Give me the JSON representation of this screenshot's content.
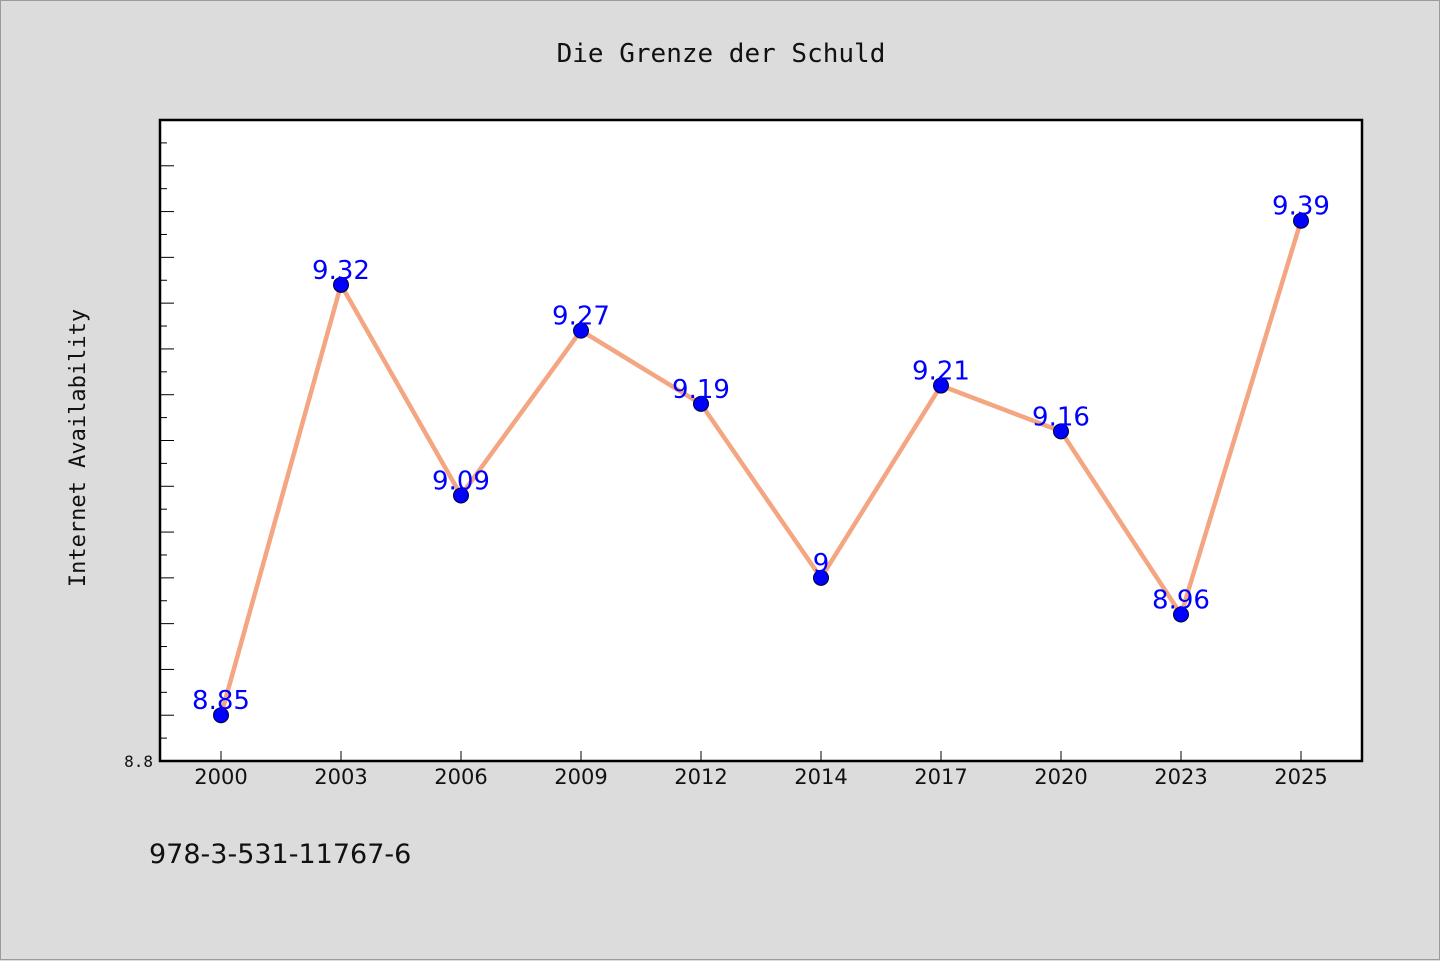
{
  "chart_data": {
    "type": "line",
    "title": "Die Grenze der Schuld",
    "xlabel": "",
    "ylabel": "Internet Availability",
    "categories": [
      "2000",
      "2003",
      "2006",
      "2009",
      "2012",
      "2014",
      "2017",
      "2020",
      "2023",
      "2025"
    ],
    "series": [
      {
        "values": [
          8.85,
          9.32,
          9.09,
          9.27,
          9.19,
          9.0,
          9.21,
          9.16,
          8.96,
          9.39
        ],
        "data_labels": [
          "8.85",
          "9.32",
          "9.09",
          "9.27",
          "9.19",
          "9",
          "9.21",
          "9.16",
          "8.96",
          "9.39"
        ],
        "line_color": "#f4a582",
        "marker_color": "#0000ff",
        "label_color": "#0000ff"
      }
    ],
    "ylim": [
      8.8,
      9.5
    ],
    "ytick_labels": [
      "8.8"
    ],
    "grid": false,
    "legend": "none"
  },
  "footer": {
    "isbn": "978-3-531-11767-6"
  },
  "colors": {
    "background": "#dcdcdc",
    "plot_background": "#ffffff",
    "axes": "#000000"
  }
}
